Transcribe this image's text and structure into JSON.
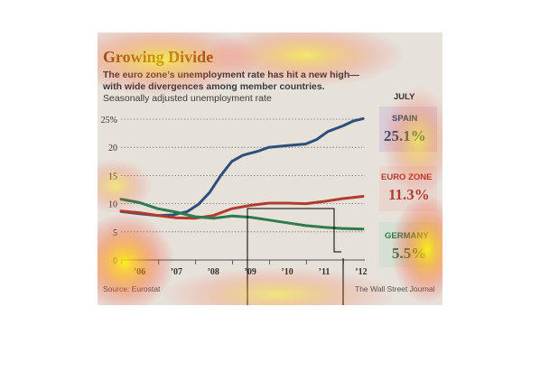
{
  "chart_data": {
    "type": "line",
    "title": "Growing Divide",
    "subtitle_lines": [
      "The euro zone’s unemployment rate has hit a new high—",
      "with wide divergences among member countries.",
      "Seasonally adjusted unemployment rate"
    ],
    "month_label": "JULY",
    "y_ticks": [
      "25%",
      "20",
      "15",
      "10",
      "5",
      "0"
    ],
    "y_tick_values": [
      25,
      20,
      15,
      10,
      5,
      0
    ],
    "x_ticks": [
      "’06",
      "’07",
      "’08",
      "’09",
      "’10",
      "’11",
      "’12"
    ],
    "x_tick_values": [
      2006,
      2007,
      2008,
      2009,
      2010,
      2011,
      2012
    ],
    "ylim": [
      0,
      25
    ],
    "xlim": [
      2006,
      2012.6
    ],
    "series": [
      {
        "name": "SPAIN",
        "end_label": "25.1%",
        "color": "#2e4f7a",
        "x": [
          2006.0,
          2006.5,
          2007.0,
          2007.4,
          2007.8,
          2008.1,
          2008.4,
          2008.7,
          2009.0,
          2009.3,
          2009.7,
          2010.0,
          2010.5,
          2011.0,
          2011.3,
          2011.6,
          2012.0,
          2012.3,
          2012.55
        ],
        "y": [
          8.6,
          8.2,
          7.9,
          8.0,
          8.6,
          9.9,
          12.0,
          15.0,
          17.5,
          18.6,
          19.3,
          20.0,
          20.3,
          20.6,
          21.4,
          22.8,
          23.8,
          24.7,
          25.1
        ]
      },
      {
        "name": "EURO ZONE",
        "end_label": "11.3%",
        "color": "#b23a2e",
        "x": [
          2006.0,
          2006.5,
          2007.0,
          2007.5,
          2008.0,
          2008.5,
          2009.0,
          2009.5,
          2010.0,
          2010.5,
          2011.0,
          2011.5,
          2012.0,
          2012.55
        ],
        "y": [
          8.7,
          8.4,
          7.9,
          7.5,
          7.4,
          7.9,
          9.1,
          9.7,
          10.1,
          10.1,
          10.0,
          10.4,
          10.9,
          11.3
        ]
      },
      {
        "name": "GERMANY",
        "end_label": "5.5%",
        "color": "#2f7a4f",
        "x": [
          2006.0,
          2006.5,
          2007.0,
          2007.5,
          2008.0,
          2008.5,
          2009.0,
          2009.5,
          2010.0,
          2010.5,
          2011.0,
          2011.5,
          2012.0,
          2012.55
        ],
        "y": [
          10.8,
          10.2,
          9.1,
          8.5,
          7.7,
          7.4,
          7.8,
          7.6,
          7.1,
          6.6,
          6.1,
          5.8,
          5.6,
          5.5
        ]
      }
    ],
    "source": "Source: Eurostat",
    "credit": "The Wall Street Journal"
  }
}
